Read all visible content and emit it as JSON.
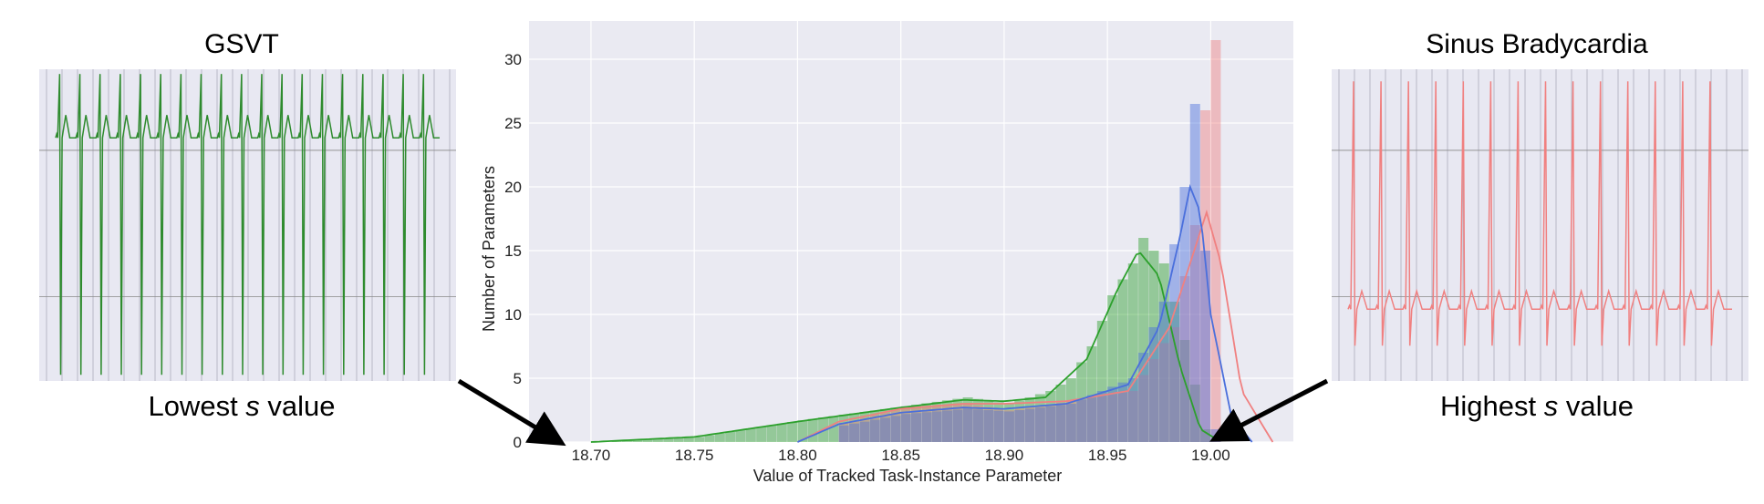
{
  "left_panel": {
    "title": "GSVT",
    "caption_prefix": "Lowest ",
    "caption_var": "s",
    "caption_suffix": " value",
    "trace_color": "#2e8b2e"
  },
  "right_panel": {
    "title": "Sinus Bradycardia",
    "caption_prefix": "Highest ",
    "caption_var": "s",
    "caption_suffix": " value",
    "trace_color": "#f08080"
  },
  "chart_data": {
    "type": "area",
    "title": "",
    "xlabel": "Value of Tracked Task-Instance Parameter",
    "ylabel": "Number of Parameters",
    "xlim": [
      18.67,
      19.04
    ],
    "ylim": [
      0,
      33
    ],
    "xticks": [
      18.7,
      18.75,
      18.8,
      18.85,
      18.9,
      18.95,
      19.0
    ],
    "yticks": [
      0,
      5,
      10,
      15,
      20,
      25,
      30
    ],
    "grid": true,
    "background": "#eaeaf2",
    "series": [
      {
        "color": "#2ca02c",
        "kde": [
          [
            18.7,
            0
          ],
          [
            18.75,
            0.4
          ],
          [
            18.8,
            1.6
          ],
          [
            18.85,
            2.7
          ],
          [
            18.88,
            3.3
          ],
          [
            18.9,
            3.2
          ],
          [
            18.92,
            3.5
          ],
          [
            18.94,
            6.5
          ],
          [
            18.955,
            12
          ],
          [
            18.965,
            15
          ],
          [
            18.975,
            13
          ],
          [
            18.985,
            6
          ],
          [
            18.995,
            1
          ],
          [
            19.005,
            0
          ]
        ],
        "hist": [
          [
            18.7,
            0
          ],
          [
            18.75,
            0.4
          ],
          [
            18.8,
            1.7
          ],
          [
            18.85,
            2.8
          ],
          [
            18.88,
            3.5
          ],
          [
            18.9,
            3.0
          ],
          [
            18.92,
            4
          ],
          [
            18.93,
            5
          ],
          [
            18.94,
            7.5
          ],
          [
            18.95,
            11.5
          ],
          [
            18.96,
            14
          ],
          [
            18.965,
            16
          ],
          [
            18.975,
            14
          ],
          [
            18.985,
            8
          ],
          [
            18.995,
            1
          ]
        ]
      },
      {
        "color": "#f08080",
        "kde": [
          [
            18.8,
            0
          ],
          [
            18.82,
            1.6
          ],
          [
            18.85,
            2.6
          ],
          [
            18.88,
            3.0
          ],
          [
            18.9,
            3.0
          ],
          [
            18.93,
            3.2
          ],
          [
            18.96,
            4
          ],
          [
            18.98,
            9
          ],
          [
            18.99,
            14
          ],
          [
            18.998,
            18
          ],
          [
            19.005,
            14
          ],
          [
            19.015,
            4
          ],
          [
            19.03,
            0
          ]
        ],
        "hist": [
          [
            18.82,
            1.5
          ],
          [
            18.85,
            2.7
          ],
          [
            18.88,
            3.0
          ],
          [
            18.9,
            2.5
          ],
          [
            18.93,
            3.2
          ],
          [
            18.96,
            4
          ],
          [
            18.98,
            9
          ],
          [
            18.99,
            17
          ],
          [
            18.995,
            26
          ],
          [
            19.0,
            31.5
          ]
        ]
      },
      {
        "color": "#4a6fdc",
        "kde": [
          [
            18.8,
            0
          ],
          [
            18.82,
            1.4
          ],
          [
            18.85,
            2.3
          ],
          [
            18.88,
            2.7
          ],
          [
            18.9,
            2.6
          ],
          [
            18.93,
            3.0
          ],
          [
            18.96,
            4.5
          ],
          [
            18.975,
            9
          ],
          [
            18.985,
            16
          ],
          [
            18.99,
            20
          ],
          [
            18.995,
            18
          ],
          [
            19.0,
            10
          ],
          [
            19.01,
            2
          ],
          [
            19.02,
            0
          ]
        ],
        "hist": [
          [
            18.82,
            1.3
          ],
          [
            18.85,
            2.2
          ],
          [
            18.88,
            2.6
          ],
          [
            18.9,
            2.4
          ],
          [
            18.93,
            3.0
          ],
          [
            18.96,
            5
          ],
          [
            18.975,
            11
          ],
          [
            18.985,
            20
          ],
          [
            18.99,
            26.5
          ],
          [
            18.995,
            15
          ],
          [
            19.0,
            1
          ]
        ]
      }
    ]
  }
}
